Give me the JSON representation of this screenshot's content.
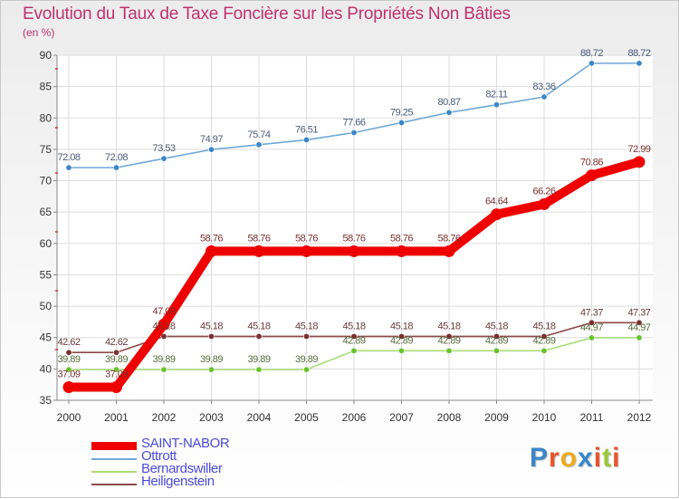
{
  "chart_data": {
    "type": "line",
    "title": "Evolution du Taux de Taxe Foncière sur les Propriétés Non Bâties",
    "ylabel": "(en %)",
    "xlabel": "",
    "ylim": [
      35,
      90
    ],
    "yticks": [
      "35",
      "40",
      "45",
      "50",
      "55",
      "60",
      "65",
      "70",
      "75",
      "80",
      "85",
      "90"
    ],
    "categories": [
      "2000",
      "2001",
      "2002",
      "2003",
      "2004",
      "2005",
      "2006",
      "2007",
      "2008",
      "2009",
      "2010",
      "2011",
      "2012"
    ],
    "grid": true,
    "legend_position": "bottom-left",
    "series": [
      {
        "name": "Ottrott",
        "color": "#6fa8d6",
        "marker_color": "#3a86c8",
        "values": [
          72.08,
          72.08,
          73.53,
          74.97,
          75.74,
          76.51,
          77.66,
          79.25,
          80.87,
          82.11,
          83.36,
          88.72,
          88.72
        ],
        "labels": [
          "72.08",
          "72.08",
          "73.53",
          "74.97",
          "75.74",
          "76.51",
          "77.66",
          "79.25",
          "80.87",
          "82.11",
          "83.36",
          "88.72",
          "88.72"
        ]
      },
      {
        "name": "Bernardswiller",
        "color": "#a8dc78",
        "marker_color": "#66c22c",
        "values": [
          39.89,
          39.89,
          39.89,
          39.89,
          39.89,
          39.89,
          42.89,
          42.89,
          42.89,
          42.89,
          42.89,
          44.97,
          44.97
        ],
        "labels": [
          "39.89",
          "39.89",
          "39.89",
          "39.89",
          "39.89",
          "39.89",
          "42.89",
          "42.89",
          "42.89",
          "42.89",
          "42.89",
          "44.97",
          "44.97"
        ]
      },
      {
        "name": "Heiligenstein",
        "color": "#8c4a4a",
        "marker_color": "#7a2f2f",
        "values": [
          42.62,
          42.62,
          45.18,
          45.18,
          45.18,
          45.18,
          45.18,
          45.18,
          45.18,
          45.18,
          45.18,
          47.37,
          47.37
        ],
        "labels": [
          "42.62",
          "42.62",
          "45.18",
          "45.18",
          "45.18",
          "45.18",
          "45.18",
          "45.18",
          "45.18",
          "45.18",
          "45.18",
          "47.37",
          "47.37"
        ]
      },
      {
        "name": "SAINT-NABOR",
        "color": "#ee0000",
        "marker_color": "#ee0000",
        "values": [
          37.09,
          37.09,
          47.09,
          58.76,
          58.76,
          58.76,
          58.76,
          58.76,
          58.76,
          64.64,
          66.26,
          70.86,
          72.99
        ],
        "labels": [
          "37.09",
          "37.09",
          "47.09",
          "58.76",
          "58.76",
          "58.76",
          "58.76",
          "58.76",
          "58.76",
          "64.64",
          "66.26",
          "70.86",
          "72.99"
        ]
      }
    ]
  },
  "legend": [
    {
      "name": "SAINT-NABOR",
      "color": "#ee0000",
      "thick": true
    },
    {
      "name": "Ottrott",
      "color": "#6fa8d6",
      "thick": false
    },
    {
      "name": "Bernardswiller",
      "color": "#a8dc78",
      "thick": false
    },
    {
      "name": "Heiligenstein",
      "color": "#8c4a4a",
      "thick": false
    }
  ],
  "logo": {
    "letters": [
      "P",
      "r",
      "o",
      "x",
      "i",
      "t",
      "i"
    ],
    "colors": [
      "#3a86c8",
      "#e8542a",
      "#f0a81c",
      "#3a86c8",
      "#e8542a",
      "#9bc83c",
      "#e8542a"
    ]
  }
}
